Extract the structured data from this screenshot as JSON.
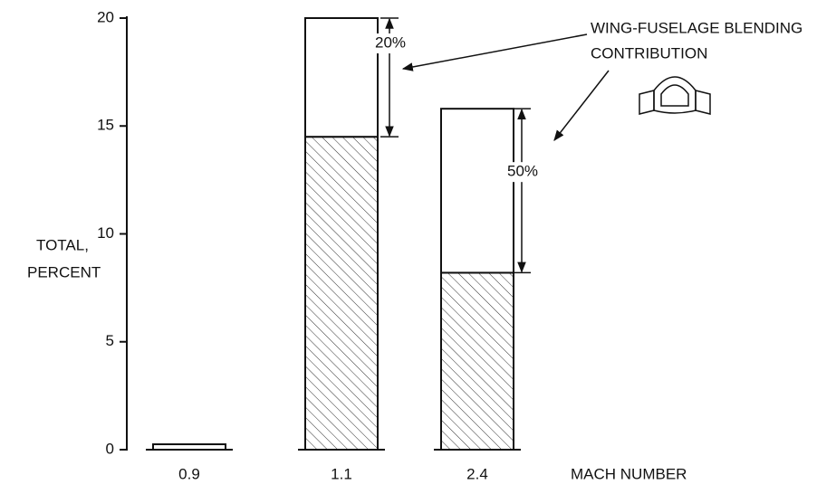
{
  "chart_data": {
    "type": "stacked-bar",
    "categories": [
      "0.9",
      "1.1",
      "2.4"
    ],
    "series": [
      {
        "color": "#ffffff",
        "hatch": true,
        "values": [
          0,
          14.5,
          8.2
        ]
      },
      {
        "color": "#ffffff",
        "hatch": false,
        "values": [
          0.25,
          5.5,
          7.6
        ]
      }
    ],
    "ylim": [
      0,
      20
    ],
    "yticks": [
      0,
      5,
      10,
      15,
      20
    ],
    "ylabel": [
      "TOTAL,",
      "PERCENT"
    ],
    "xlabel": "MACH NUMBER",
    "annotation": [
      "WING-FUSELAGE BLENDING",
      "CONTRIBUTION"
    ],
    "segment_labels": [
      "20%",
      "50%"
    ]
  }
}
